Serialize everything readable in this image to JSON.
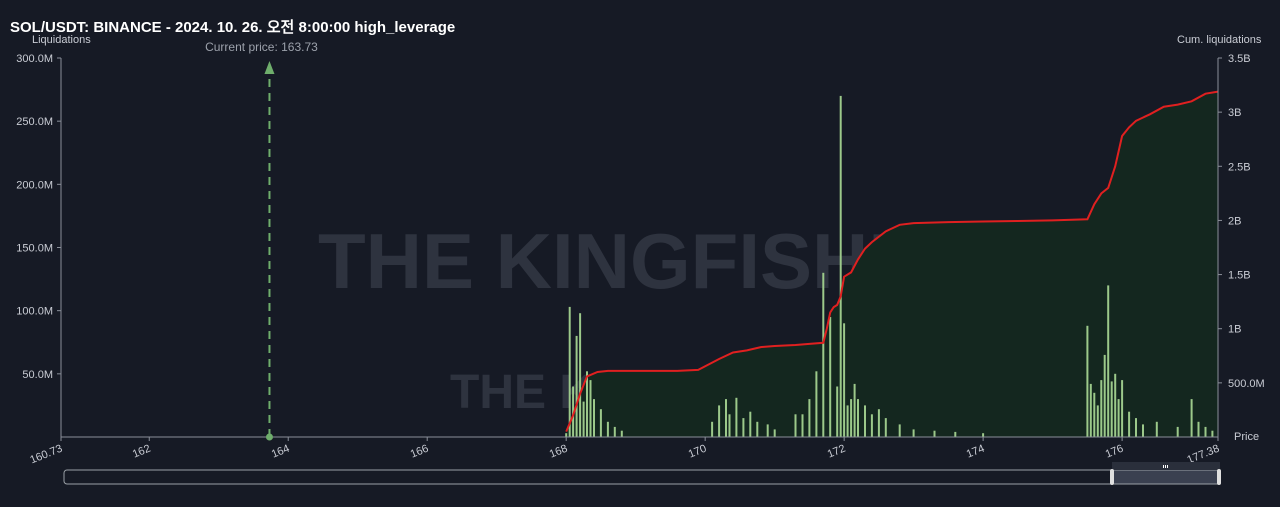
{
  "header": {
    "title": "SOL/USDT: BINANCE - 2024. 10. 26. 오전 8:00:00 high_leverage"
  },
  "chart_data": {
    "type": "bar",
    "title": "SOL/USDT: BINANCE - 2024. 10. 26. 오전 8:00:00 high_leverage",
    "ylabel_left": "Liquidations",
    "ylabel_right": "Cum. liquidations",
    "xlabel": "Price",
    "current_price_label": "Current price: 163.73",
    "current_price": 163.73,
    "xlim": [
      160.73,
      177.38
    ],
    "ylim_left": [
      0,
      300000000
    ],
    "ylim_right": [
      0,
      3500000000
    ],
    "x_ticks": [
      "160.73",
      "162",
      "164",
      "166",
      "168",
      "170",
      "172",
      "174",
      "176",
      "177.38"
    ],
    "x_tick_values": [
      160.73,
      162,
      164,
      166,
      168,
      170,
      172,
      174,
      176,
      177.38
    ],
    "y_left_ticks": [
      "50.0M",
      "100.0M",
      "150.0M",
      "200.0M",
      "250.0M",
      "300.0M"
    ],
    "y_left_tick_values": [
      50000000,
      100000000,
      150000000,
      200000000,
      250000000,
      300000000
    ],
    "y_right_ticks": [
      "500.0M",
      "1B",
      "1.5B",
      "2B",
      "2.5B",
      "3B",
      "3.5B"
    ],
    "y_right_tick_values": [
      500000000,
      1000000000,
      1500000000,
      2000000000,
      2500000000,
      3000000000,
      3500000000
    ],
    "grid": false,
    "watermark": "THE KINGFISHER.IO",
    "colors": {
      "background": "#161a25",
      "bars": "#9cc98a",
      "cumulative_line": "#e02020",
      "cumulative_area": "#14271f",
      "current_price": "#6fae6c",
      "axis": "#8a8f99"
    },
    "series": [
      {
        "name": "Liquidations",
        "x": [
          168.0,
          168.05,
          168.1,
          168.15,
          168.2,
          168.25,
          168.3,
          168.35,
          168.4,
          168.5,
          168.6,
          168.7,
          168.8,
          170.1,
          170.2,
          170.3,
          170.35,
          170.45,
          170.55,
          170.65,
          170.75,
          170.9,
          171.0,
          171.3,
          171.4,
          171.5,
          171.6,
          171.7,
          171.8,
          171.9,
          171.95,
          172.0,
          172.05,
          172.1,
          172.15,
          172.2,
          172.3,
          172.4,
          172.5,
          172.6,
          172.8,
          173.0,
          173.3,
          173.6,
          174.0,
          175.5,
          175.55,
          175.6,
          175.65,
          175.7,
          175.75,
          175.8,
          175.85,
          175.9,
          175.95,
          176.0,
          176.1,
          176.2,
          176.3,
          176.5,
          176.8,
          177.0,
          177.1,
          177.2,
          177.3
        ],
        "values": [
          3000000,
          103000000,
          40000000,
          80000000,
          98000000,
          28000000,
          52000000,
          45000000,
          30000000,
          22000000,
          12000000,
          8000000,
          5000000,
          12000000,
          25000000,
          30000000,
          18000000,
          31000000,
          15000000,
          20000000,
          12000000,
          10000000,
          6000000,
          18000000,
          18000000,
          30000000,
          52000000,
          130000000,
          95000000,
          40000000,
          270000000,
          90000000,
          25000000,
          30000000,
          42000000,
          30000000,
          25000000,
          18000000,
          22000000,
          15000000,
          10000000,
          6000000,
          5000000,
          4000000,
          3000000,
          88000000,
          42000000,
          35000000,
          25000000,
          45000000,
          65000000,
          120000000,
          44000000,
          50000000,
          30000000,
          45000000,
          20000000,
          15000000,
          10000000,
          12000000,
          8000000,
          30000000,
          12000000,
          8000000,
          5000000
        ]
      },
      {
        "name": "Cum. liquidations",
        "x": [
          168.0,
          168.1,
          168.2,
          168.3,
          168.45,
          168.6,
          168.8,
          169.0,
          169.3,
          169.6,
          169.9,
          170.2,
          170.4,
          170.6,
          170.8,
          171.0,
          171.3,
          171.5,
          171.7,
          171.75,
          171.8,
          171.85,
          171.9,
          171.95,
          172.0,
          172.1,
          172.2,
          172.3,
          172.4,
          172.6,
          172.8,
          173.0,
          173.5,
          174.0,
          174.5,
          175.0,
          175.5,
          175.6,
          175.7,
          175.8,
          175.9,
          176.0,
          176.1,
          176.2,
          176.4,
          176.6,
          176.8,
          177.0,
          177.2,
          177.38
        ],
        "values": [
          50000000,
          200000000,
          400000000,
          560000000,
          600000000,
          610000000,
          610000000,
          610000000,
          610000000,
          610000000,
          620000000,
          720000000,
          780000000,
          800000000,
          830000000,
          840000000,
          850000000,
          860000000,
          870000000,
          1000000000,
          1150000000,
          1200000000,
          1220000000,
          1300000000,
          1480000000,
          1520000000,
          1640000000,
          1740000000,
          1800000000,
          1900000000,
          1960000000,
          1975000000,
          1985000000,
          1990000000,
          1995000000,
          2000000000,
          2010000000,
          2150000000,
          2250000000,
          2300000000,
          2500000000,
          2780000000,
          2860000000,
          2920000000,
          2980000000,
          3050000000,
          3070000000,
          3100000000,
          3170000000,
          3190000000
        ]
      }
    ]
  }
}
